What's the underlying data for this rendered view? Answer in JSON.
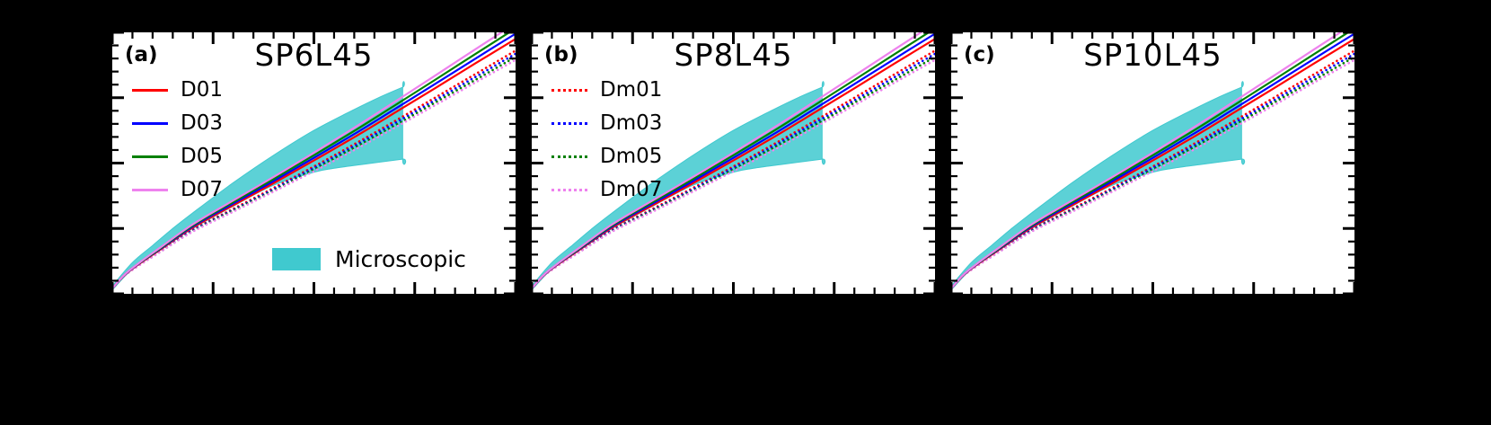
{
  "figure": {
    "background_color": "#000000",
    "plot_background_color": "#ffffff",
    "axis_color": "#000000"
  },
  "chart_data": {
    "type": "line",
    "note": "Three-panel line figure; axis tick labels are not visible in the image, coordinates are normalized 0-1 fractions of each panel axis.",
    "panels": [
      {
        "label": "(a)",
        "title": "SP6L45",
        "legend": [
          {
            "label": "D01",
            "color": "#ff0000",
            "style": "solid"
          },
          {
            "label": "D03",
            "color": "#0000ff",
            "style": "solid"
          },
          {
            "label": "D05",
            "color": "#008000",
            "style": "solid"
          },
          {
            "label": "D07",
            "color": "#ee82ee",
            "style": "solid"
          }
        ],
        "show_band_legend": true
      },
      {
        "label": "(b)",
        "title": "SP8L45",
        "legend": [
          {
            "label": "Dm01",
            "color": "#ff0000",
            "style": "dotted"
          },
          {
            "label": "Dm03",
            "color": "#0000ff",
            "style": "dotted"
          },
          {
            "label": "Dm05",
            "color": "#008000",
            "style": "dotted"
          },
          {
            "label": "Dm07",
            "color": "#ee82ee",
            "style": "dotted"
          }
        ],
        "show_band_legend": false
      },
      {
        "label": "(c)",
        "title": "SP10L45",
        "legend": [],
        "show_band_legend": false
      }
    ],
    "x": [
      0,
      0.03,
      0.07,
      0.12,
      0.2,
      0.3,
      0.4,
      0.5,
      0.6,
      0.7,
      0.8,
      0.9,
      1.0
    ],
    "series": [
      {
        "name": "D01",
        "color": "#ff0000",
        "style": "solid",
        "y": [
          0.02,
          0.071,
          0.118,
          0.17,
          0.254,
          0.339,
          0.423,
          0.51,
          0.599,
          0.692,
          0.786,
          0.881,
          0.975
        ]
      },
      {
        "name": "D03",
        "color": "#0000ff",
        "style": "solid",
        "y": [
          0.02,
          0.072,
          0.12,
          0.173,
          0.258,
          0.345,
          0.431,
          0.52,
          0.611,
          0.706,
          0.802,
          0.899,
          0.995
        ]
      },
      {
        "name": "D05",
        "color": "#008000",
        "style": "solid",
        "y": [
          0.02,
          0.073,
          0.121,
          0.175,
          0.262,
          0.351,
          0.439,
          0.53,
          0.623,
          0.72,
          0.818,
          0.917,
          1.015
        ]
      },
      {
        "name": "D07",
        "color": "#ee82ee",
        "style": "solid",
        "y": [
          0.02,
          0.073,
          0.122,
          0.178,
          0.266,
          0.357,
          0.447,
          0.54,
          0.635,
          0.734,
          0.834,
          0.935,
          1.035
        ]
      },
      {
        "name": "Dm01",
        "color": "#ff0000",
        "style": "dotted",
        "y": [
          0.02,
          0.07,
          0.115,
          0.165,
          0.245,
          0.325,
          0.405,
          0.487,
          0.572,
          0.66,
          0.75,
          0.84,
          0.93
        ]
      },
      {
        "name": "Dm03",
        "color": "#0000ff",
        "style": "dotted",
        "y": [
          0.02,
          0.07,
          0.114,
          0.164,
          0.243,
          0.321,
          0.4,
          0.481,
          0.565,
          0.652,
          0.74,
          0.829,
          0.918
        ]
      },
      {
        "name": "Dm05",
        "color": "#008000",
        "style": "dotted",
        "y": [
          0.02,
          0.069,
          0.113,
          0.162,
          0.24,
          0.318,
          0.395,
          0.475,
          0.558,
          0.643,
          0.731,
          0.818,
          0.906
        ]
      },
      {
        "name": "Dm07",
        "color": "#ee82ee",
        "style": "dotted",
        "y": [
          0.02,
          0.069,
          0.112,
          0.161,
          0.238,
          0.314,
          0.391,
          0.469,
          0.55,
          0.635,
          0.721,
          0.808,
          0.894
        ]
      }
    ],
    "band": {
      "label": "Microscopic",
      "color": "#40c9cf",
      "upper": [
        [
          0,
          0.03
        ],
        [
          0.05,
          0.12
        ],
        [
          0.1,
          0.185
        ],
        [
          0.15,
          0.25
        ],
        [
          0.2,
          0.31
        ],
        [
          0.3,
          0.425
        ],
        [
          0.4,
          0.53
        ],
        [
          0.5,
          0.625
        ],
        [
          0.6,
          0.705
        ],
        [
          0.66,
          0.75
        ],
        [
          0.72,
          0.79
        ]
      ],
      "lower": [
        [
          0,
          0.015
        ],
        [
          0.05,
          0.095
        ],
        [
          0.1,
          0.15
        ],
        [
          0.15,
          0.2
        ],
        [
          0.2,
          0.25
        ],
        [
          0.3,
          0.335
        ],
        [
          0.4,
          0.415
        ],
        [
          0.5,
          0.465
        ],
        [
          0.55,
          0.48
        ],
        [
          0.62,
          0.495
        ],
        [
          0.72,
          0.515
        ]
      ]
    },
    "axes": {
      "x_major": [
        0,
        0.25,
        0.5,
        0.75,
        1.0
      ],
      "x_minor_step": 0.05,
      "y_major": [
        0,
        0.25,
        0.5,
        0.75,
        1.0
      ],
      "y_minor_step": 0.05,
      "ticks_in": true,
      "grid": false,
      "tick_labels_visible": false
    }
  }
}
